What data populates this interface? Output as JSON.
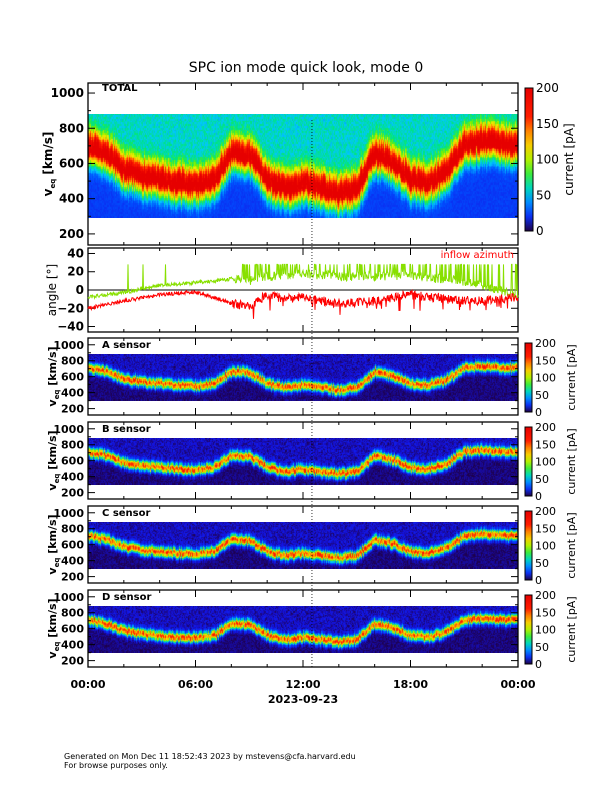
{
  "title": "SPC ion mode quick look, mode 0",
  "footer": {
    "line1": "Generated on Mon Dec 11 18:52:43 2023 by mstevens@cfa.harvard.edu",
    "line2": "For browse purposes only."
  },
  "chart_data": [
    {
      "type": "heatmap",
      "panel_label": "TOTAL",
      "ylabel_main": "v",
      "ylabel_sub": "eq",
      "ylabel_unit": "[km/s]",
      "ylim": [
        137,
        1057
      ],
      "yticks": [
        200,
        400,
        600,
        800,
        1000
      ],
      "data_velocity_range": [
        290,
        880
      ],
      "colorbar": {
        "label": "current [pA]",
        "range": [
          0,
          200
        ],
        "ticks": [
          0,
          50,
          100,
          150,
          200
        ]
      },
      "peak_velocity_by_hour": [
        700,
        650,
        560,
        520,
        500,
        480,
        470,
        500,
        650,
        640,
        500,
        450,
        480,
        450,
        420,
        450,
        650,
        600,
        500,
        480,
        550,
        700,
        720,
        700,
        700
      ]
    },
    {
      "type": "line",
      "ylabel": "angle [°]",
      "ylim": [
        -46,
        46
      ],
      "yticks": [
        -40,
        -20,
        0,
        20,
        40
      ],
      "series": [
        {
          "name": "inflow azimuth",
          "color": "#ff0000",
          "x_hours": [
            0,
            2,
            4,
            6,
            7,
            8,
            9,
            10,
            11,
            12,
            14,
            16,
            18,
            20,
            22,
            24
          ],
          "values": [
            -20,
            -12,
            -5,
            -2,
            -8,
            -15,
            -18,
            -5,
            -10,
            -8,
            -15,
            -12,
            -5,
            -10,
            -12,
            -8
          ]
        },
        {
          "color": "#88e000",
          "x_hours": [
            0,
            2,
            4,
            6,
            8,
            9,
            10,
            12,
            14,
            16,
            18,
            20,
            22,
            24
          ],
          "values": [
            -8,
            -3,
            5,
            8,
            12,
            10,
            15,
            18,
            15,
            15,
            15,
            12,
            5,
            -5
          ]
        }
      ]
    },
    {
      "type": "heatmap",
      "panel_label": "A sensor",
      "ylabel_main": "v",
      "ylabel_sub": "eq",
      "ylabel_unit": "[km/s]",
      "colorbar": {
        "label": "current [pA]",
        "ticks": [
          0,
          50,
          100,
          150,
          200
        ]
      }
    },
    {
      "type": "heatmap",
      "panel_label": "B sensor",
      "ylabel_main": "v",
      "ylabel_sub": "eq",
      "ylabel_unit": "[km/s]",
      "colorbar": {
        "label": "current [pA]",
        "ticks": [
          0,
          50,
          100,
          150,
          200
        ]
      }
    },
    {
      "type": "heatmap",
      "panel_label": "C sensor",
      "ylabel_main": "v",
      "ylabel_sub": "eq",
      "ylabel_unit": "[km/s]",
      "colorbar": {
        "label": "current [pA]",
        "ticks": [
          0,
          50,
          100,
          150,
          200
        ]
      }
    },
    {
      "type": "heatmap",
      "panel_label": "D sensor",
      "ylabel_main": "v",
      "ylabel_sub": "eq",
      "ylabel_unit": "[km/s]",
      "colorbar": {
        "label": "current [pA]",
        "ticks": [
          0,
          50,
          100,
          150,
          200
        ]
      }
    }
  ],
  "xaxis": {
    "tick_labels": [
      "00:00",
      "06:00",
      "12:00",
      "18:00",
      "00:00"
    ],
    "date": "2023-09-23",
    "marker_hour": 12.5
  }
}
